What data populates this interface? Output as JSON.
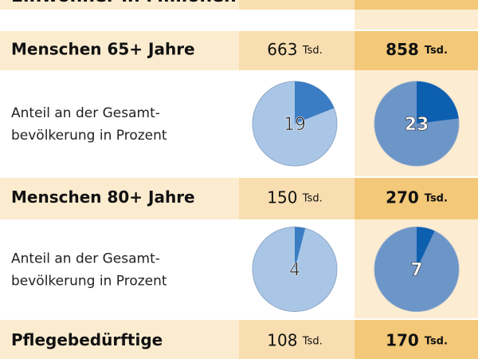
{
  "header_row": {
    "label": "Einwohner in Millionen"
  },
  "rows": [
    {
      "type": "count",
      "label": "Menschen 65+ Jahre",
      "cells": [
        {
          "number": "663",
          "unit": "Tsd."
        },
        {
          "number": "858",
          "unit": "Tsd."
        }
      ]
    },
    {
      "type": "pie",
      "label_lines": [
        "Anteil an der Gesamt-",
        "bevölkerung in Prozent"
      ],
      "values": [
        19,
        23
      ]
    },
    {
      "type": "count",
      "label": "Menschen 80+ Jahre",
      "cells": [
        {
          "number": "150",
          "unit": "Tsd."
        },
        {
          "number": "270",
          "unit": "Tsd."
        }
      ]
    },
    {
      "type": "pie",
      "label_lines": [
        "Anteil an der Gesamt-",
        "bevölkerung in Prozent"
      ],
      "values": [
        4,
        7
      ]
    },
    {
      "type": "count",
      "label": "Pflegebedürftige",
      "cells": [
        {
          "number": "108",
          "unit": "Tsd."
        },
        {
          "number": "170",
          "unit": "Tsd."
        }
      ]
    }
  ]
}
